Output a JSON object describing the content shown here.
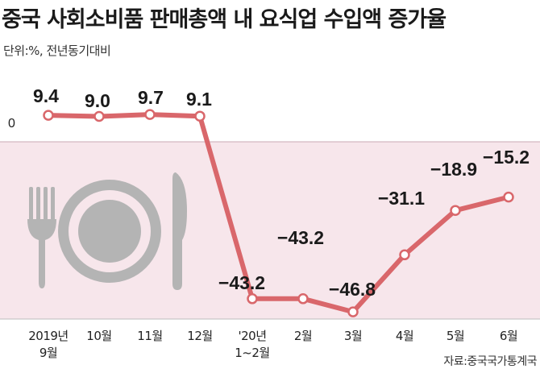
{
  "header": {
    "title": "중국 사회소비품 판매총액 내 요식업 수입액 증가율",
    "unit": "단위:%, 전년동기대비",
    "source": "자료:중국국가통계국"
  },
  "chart_data": {
    "type": "line",
    "title": "중국 사회소비품 판매총액 내 요식업 수입액 증가율",
    "ylabel": "단위:%, 전년동기대비",
    "categories": [
      [
        "2019년",
        "9월"
      ],
      [
        "10월"
      ],
      [
        "11월"
      ],
      [
        "12월"
      ],
      [
        "'20년",
        "1~2월"
      ],
      [
        "2월"
      ],
      [
        "3월"
      ],
      [
        "4월"
      ],
      [
        "5월"
      ],
      [
        "6월"
      ]
    ],
    "values": [
      9.4,
      9.0,
      9.7,
      9.1,
      -43.2,
      -43.2,
      -46.8,
      -31.1,
      -18.9,
      -15.2
    ],
    "value_labels": [
      "9.4",
      "9.0",
      "9.7",
      "9.1",
      "−43.2",
      "−43.2",
      "−46.8",
      "−31.1",
      "−18.9",
      "−15.2"
    ],
    "zero_label": "0",
    "ylim": [
      -60,
      20
    ],
    "line_color": "#d9676b",
    "negative_band_color": "#f7e6eb",
    "icon_color": "#b4b4b4",
    "decor_icons": [
      "fork-icon",
      "plate-icon",
      "knife-icon"
    ]
  }
}
